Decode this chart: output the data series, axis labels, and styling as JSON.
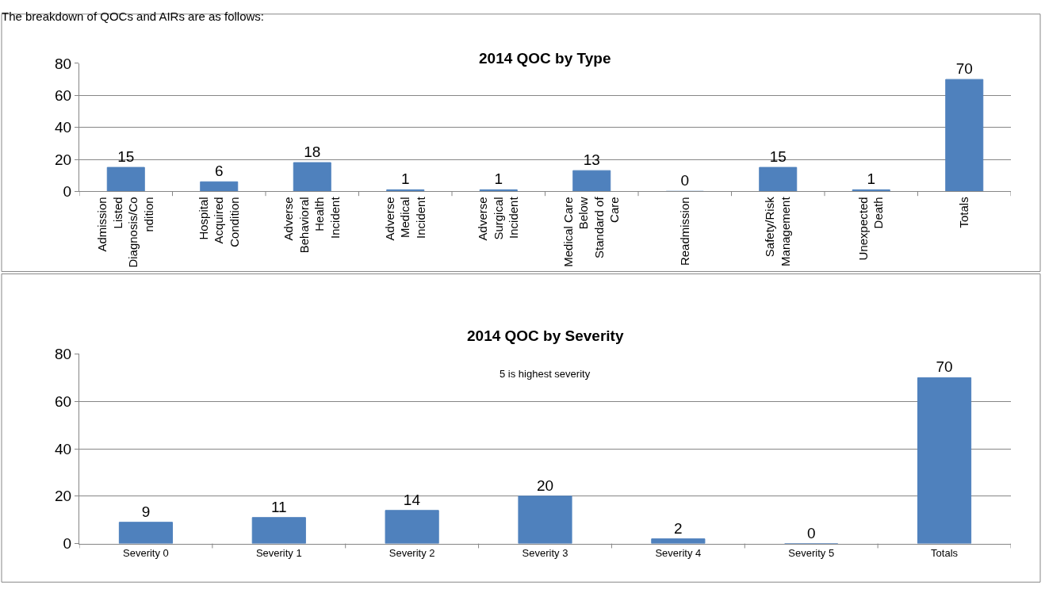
{
  "chart_data": [
    {
      "type": "bar",
      "title": "2014 QOC by Type",
      "annotations": [
        "The breakdown of QOCs and AIRs are as follows:"
      ],
      "categories": [
        "Admission Listed Diagnosis/Condition",
        "Hospital Acquired Condition",
        "Adverse Behavioral Health Incident",
        "Adverse Medical Incident",
        "Adverse Surgical Incident",
        "Medical Care Below Standard of Care",
        "Readmission",
        "Safety/Risk Management",
        "Unexpected Death",
        "Totals"
      ],
      "values": [
        15,
        6,
        18,
        1,
        1,
        13,
        0,
        15,
        1,
        70
      ],
      "color": "#4f81bd",
      "ylim": [
        0,
        80
      ],
      "yticks": [
        0,
        20,
        40,
        60,
        80
      ],
      "grid": "y",
      "data_labels": true
    },
    {
      "type": "bar",
      "title": "2014 QOC by Severity",
      "annotations": [
        "5 is highest severity"
      ],
      "categories": [
        "Severity 0",
        "Severity 1",
        "Severity 2",
        "Severity 3",
        "Severity 4",
        "Severity 5",
        "Totals"
      ],
      "values": [
        9,
        11,
        14,
        20,
        2,
        0,
        70
      ],
      "color": "#4f81bd",
      "ylim": [
        0,
        80
      ],
      "yticks": [
        0,
        20,
        40,
        60,
        80
      ],
      "grid": "y",
      "data_labels": true
    }
  ]
}
